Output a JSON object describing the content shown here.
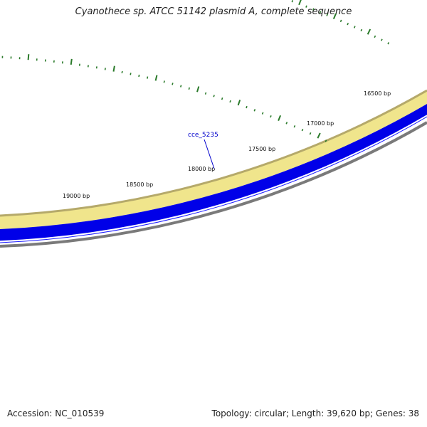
{
  "title": "Cyanothece sp. ATCC 51142 plasmid A, complete sequence",
  "accession_text": "Accession: NC_010539",
  "summary_text": "Topology: circular; Length: 39,620 bp; Genes: 38",
  "ruler": {
    "tick_labels": [
      "16500 bp",
      "17000 bp",
      "17500 bp",
      "18000 bp",
      "18500 bp",
      "19000 bp"
    ]
  },
  "gene_label": "cce_5235",
  "colors": {
    "outer_band": "#f0e58c",
    "outer_band_edge": "#b5a96a",
    "gene_band": "#0000e8",
    "gene_band_edge": "#ffffff",
    "backbone": "#7a7a7a",
    "tick": "#2a7a2a",
    "gene_pointer": "#0000cc"
  }
}
